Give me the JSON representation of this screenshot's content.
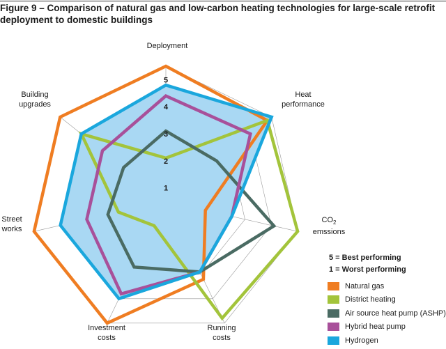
{
  "figure": {
    "title": "Figure 9 – Comparison of natural gas and low-carbon heating technologies for large-scale retrofit deployment to domestic buildings"
  },
  "scale_notes": {
    "best": "5 = Best performing",
    "worst": "1 = Worst performing"
  },
  "chart_data": {
    "type": "radar",
    "axes": [
      {
        "lines": [
          "Deployment"
        ]
      },
      {
        "lines": [
          "Heat",
          "performance"
        ]
      },
      {
        "lines": [
          "CO2",
          "emssions"
        ]
      },
      {
        "lines": [
          "Running",
          "costs"
        ]
      },
      {
        "lines": [
          "Investment",
          "costs"
        ]
      },
      {
        "lines": [
          "Street",
          "works"
        ]
      },
      {
        "lines": [
          "Building",
          "upgrades"
        ]
      }
    ],
    "scale": {
      "min": 0,
      "max": 5,
      "ticks": [
        "1",
        "2",
        "3",
        "4",
        "5"
      ]
    },
    "grid": true,
    "legend_position": "bottom-right",
    "series": [
      {
        "name": "Natural gas",
        "color": "#ef7d22",
        "values": [
          5,
          4.8,
          1.5,
          3.2,
          5,
          5,
          5
        ]
      },
      {
        "name": "District heating",
        "color": "#a3c43b",
        "values": [
          1.6,
          4.8,
          5,
          4.8,
          1,
          1.8,
          4
        ]
      },
      {
        "name": "Air source heat pump (ASHP)",
        "color": "#4a6b63",
        "values": [
          2.6,
          2.4,
          4.1,
          2.9,
          2.7,
          2.2,
          2
        ]
      },
      {
        "name": "Hybrid heat pump",
        "color": "#a8509a",
        "values": [
          3.9,
          4,
          2.5,
          2.9,
          3.8,
          3,
          3
        ]
      },
      {
        "name": "Hydrogen",
        "color": "#1aa7dd",
        "fill": "#a9d8f3",
        "values": [
          4.3,
          5,
          2.5,
          2.9,
          4,
          4,
          4
        ]
      }
    ]
  }
}
